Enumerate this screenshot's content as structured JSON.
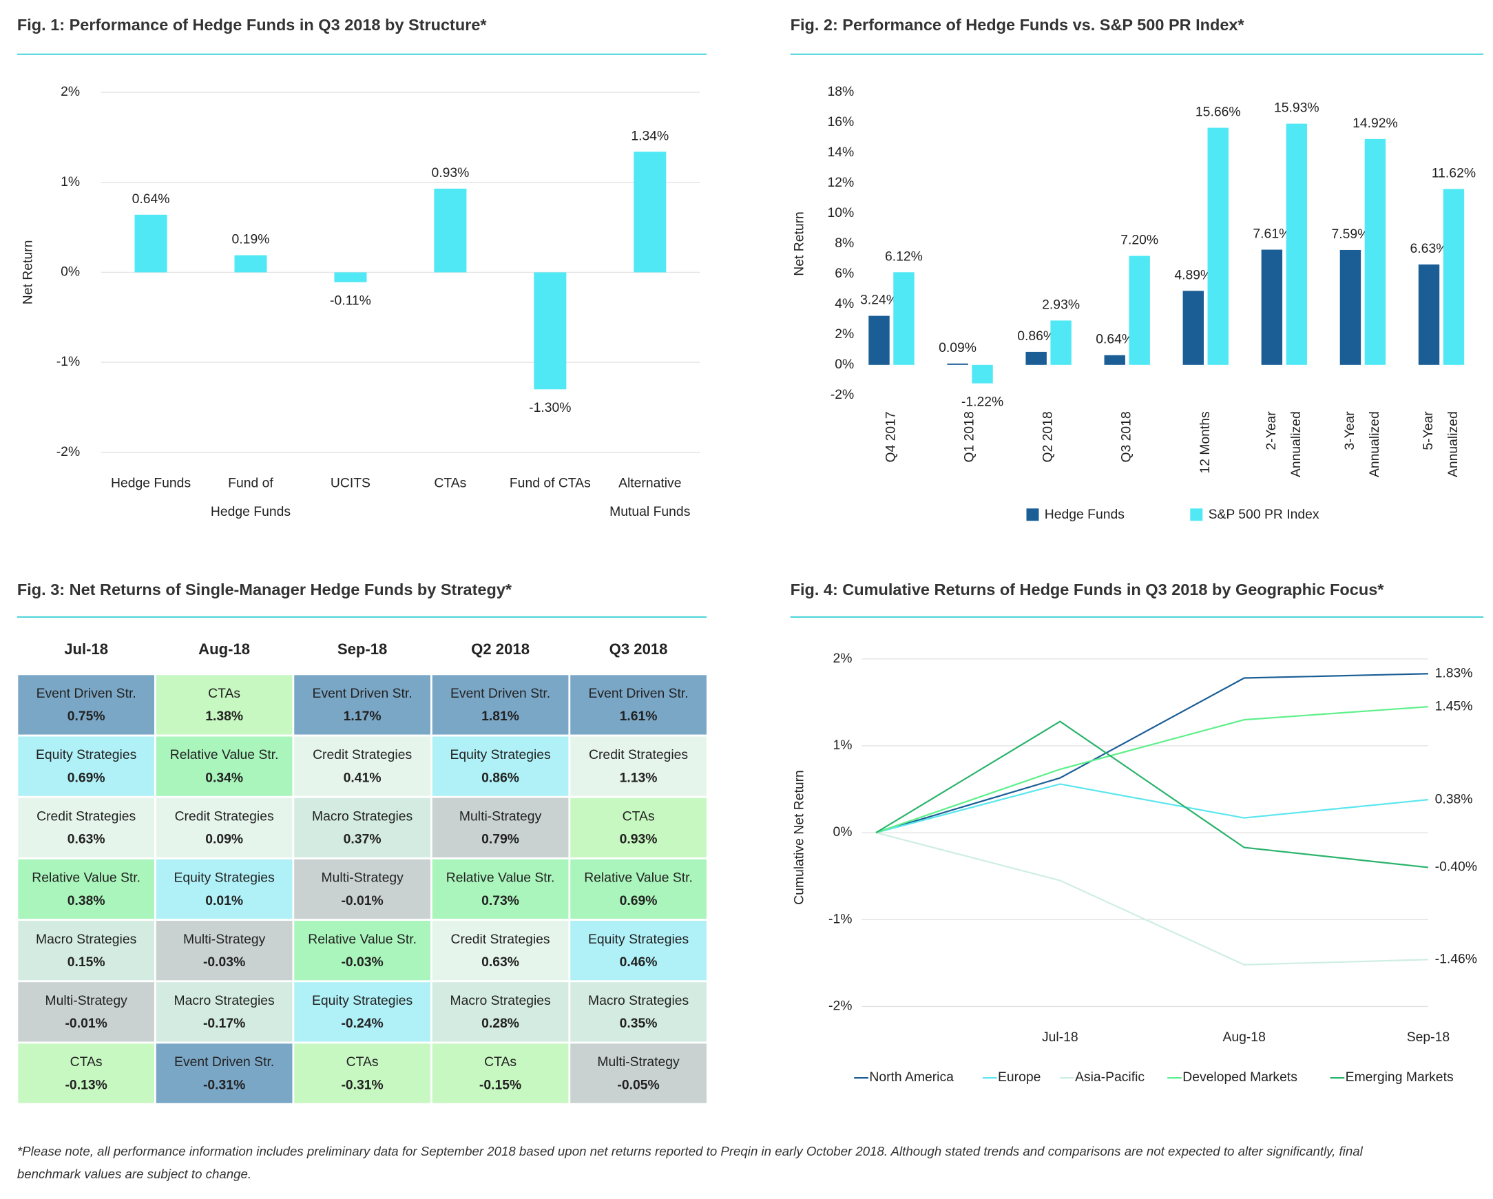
{
  "chart_data": [
    {
      "type": "bar",
      "title": "Fig. 1: Performance of Hedge Funds in Q3 2018 by Structure*",
      "ylabel": "Net Return",
      "categories": [
        "Hedge Funds",
        "Fund of Hedge Funds",
        "UCITS",
        "CTAs",
        "Fund of CTAs",
        "Alternative Mutual Funds"
      ],
      "values": [
        0.64,
        0.19,
        -0.11,
        0.93,
        -1.3,
        1.34
      ],
      "value_labels": [
        "0.64%",
        "0.19%",
        "-0.11%",
        "0.93%",
        "-1.30%",
        "1.34%"
      ],
      "color": "#50e8f5",
      "ylim": [
        -2,
        2
      ],
      "yticks": [
        {
          "value": -2,
          "label": "-2%"
        },
        {
          "value": -1,
          "label": "-1%"
        },
        {
          "value": 0,
          "label": "0%"
        },
        {
          "value": 1,
          "label": "1%"
        },
        {
          "value": 2,
          "label": "2%"
        }
      ],
      "grid": true
    },
    {
      "type": "grouped-bar",
      "title": "Fig. 2: Performance of Hedge Funds vs. S&P 500 PR Index*",
      "ylabel": "Net Return",
      "categories": [
        "Q4 2017",
        "Q1 2018",
        "Q2 2018",
        "Q3 2018",
        "12 Months",
        "2-Year Annualized",
        "3-Year Annualized",
        "5-Year Annualized"
      ],
      "series": [
        {
          "name": "Hedge Funds",
          "color": "#1b5e96",
          "values": [
            3.24,
            0.09,
            0.86,
            0.64,
            4.89,
            7.61,
            7.59,
            6.63
          ],
          "value_labels": [
            "3.24%",
            "0.09%",
            "0.86%",
            "0.64%",
            "4.89%",
            "7.61%",
            "7.59%",
            "6.63%"
          ]
        },
        {
          "name": "S&P 500 PR Index",
          "color": "#50e8f5",
          "values": [
            6.12,
            -1.22,
            2.93,
            7.2,
            15.66,
            15.93,
            14.92,
            11.62
          ],
          "value_labels": [
            "6.12%",
            "-1.22%",
            "2.93%",
            "7.20%",
            "15.66%",
            "15.93%",
            "14.92%",
            "11.62%"
          ]
        }
      ],
      "ylim": [
        -2,
        18
      ],
      "yticks": [
        {
          "value": -2,
          "label": "-2%"
        },
        {
          "value": 0,
          "label": "0%"
        },
        {
          "value": 2,
          "label": "2%"
        },
        {
          "value": 4,
          "label": "4%"
        },
        {
          "value": 6,
          "label": "6%"
        },
        {
          "value": 8,
          "label": "8%"
        },
        {
          "value": 10,
          "label": "10%"
        },
        {
          "value": 12,
          "label": "12%"
        },
        {
          "value": 14,
          "label": "14%"
        },
        {
          "value": 16,
          "label": "16%"
        },
        {
          "value": 18,
          "label": "18%"
        }
      ],
      "grid": false,
      "legend": "bottom"
    },
    {
      "type": "line",
      "title": "Fig. 4: Cumulative Returns of Hedge Funds in Q3 2018 by Geographic Focus*",
      "ylabel": "Cumulative Net Return",
      "categories": [
        null,
        "Jul-18",
        "Aug-18",
        "Sep-18"
      ],
      "series": [
        {
          "name": "North America",
          "color": "#1b5e96",
          "values": [
            0,
            0.63,
            1.78,
            1.83
          ],
          "value_labels": [
            null,
            null,
            null,
            "1.83%"
          ]
        },
        {
          "name": "Europe",
          "color": "#5ce6ef",
          "values": [
            0,
            0.56,
            0.17,
            0.38
          ],
          "value_labels": [
            null,
            null,
            null,
            "0.38%"
          ]
        },
        {
          "name": "Asia-Pacific",
          "color": "#cfeee2",
          "values": [
            0,
            -0.55,
            -1.52,
            -1.46
          ],
          "value_labels": [
            null,
            null,
            null,
            "-1.46%"
          ]
        },
        {
          "name": "Developed Markets",
          "color": "#5ef08a",
          "values": [
            0,
            0.73,
            1.3,
            1.45
          ],
          "value_labels": [
            null,
            null,
            null,
            "1.45%"
          ]
        },
        {
          "name": "Emerging Markets",
          "color": "#2ab36c",
          "values": [
            0,
            1.28,
            -0.17,
            -0.4
          ],
          "value_labels": [
            null,
            null,
            null,
            "-0.40%"
          ]
        }
      ],
      "ylim": [
        -2,
        2
      ],
      "yticks": [
        {
          "value": -2,
          "label": "-2%"
        },
        {
          "value": -1,
          "label": "-1%"
        },
        {
          "value": 0,
          "label": "0%"
        },
        {
          "value": 1,
          "label": "1%"
        },
        {
          "value": 2,
          "label": "2%"
        }
      ],
      "grid": true,
      "legend": "bottom"
    }
  ],
  "table": {
    "title": "Fig. 3: Net Returns of Single-Manager Hedge Funds by Strategy*",
    "columns": [
      "Jul-18",
      "Aug-18",
      "Sep-18",
      "Q2 2018",
      "Q3 2018"
    ],
    "rows": [
      [
        {
          "name": "Event Driven Str.",
          "value": "0.75%",
          "color": "#7ba7c7"
        },
        {
          "name": "CTAs",
          "value": "1.38%",
          "color": "#c8f8c2"
        },
        {
          "name": "Event Driven Str.",
          "value": "1.17%",
          "color": "#7ba7c7"
        },
        {
          "name": "Event Driven Str.",
          "value": "1.81%",
          "color": "#7ba7c7"
        },
        {
          "name": "Event Driven Str.",
          "value": "1.61%",
          "color": "#7ba7c7"
        }
      ],
      [
        {
          "name": "Equity Strategies",
          "value": "0.69%",
          "color": "#b0f1f8"
        },
        {
          "name": "Relative Value Str.",
          "value": "0.34%",
          "color": "#a9f5bb"
        },
        {
          "name": "Credit Strategies",
          "value": "0.41%",
          "color": "#e6f5ec"
        },
        {
          "name": "Equity Strategies",
          "value": "0.86%",
          "color": "#b0f1f8"
        },
        {
          "name": "Credit Strategies",
          "value": "1.13%",
          "color": "#e6f5ec"
        }
      ],
      [
        {
          "name": "Credit Strategies",
          "value": "0.63%",
          "color": "#e6f5ec"
        },
        {
          "name": "Credit Strategies",
          "value": "0.09%",
          "color": "#e6f5ec"
        },
        {
          "name": "Macro Strategies",
          "value": "0.37%",
          "color": "#d3ebe0"
        },
        {
          "name": "Multi-Strategy",
          "value": "0.79%",
          "color": "#c9d1d1"
        },
        {
          "name": "CTAs",
          "value": "0.93%",
          "color": "#c8f8c2"
        }
      ],
      [
        {
          "name": "Relative Value Str.",
          "value": "0.38%",
          "color": "#a9f5bb"
        },
        {
          "name": "Equity Strategies",
          "value": "0.01%",
          "color": "#b0f1f8"
        },
        {
          "name": "Multi-Strategy",
          "value": "-0.01%",
          "color": "#c9d1d1"
        },
        {
          "name": "Relative Value Str.",
          "value": "0.73%",
          "color": "#a9f5bb"
        },
        {
          "name": "Relative Value Str.",
          "value": "0.69%",
          "color": "#a9f5bb"
        }
      ],
      [
        {
          "name": "Macro Strategies",
          "value": "0.15%",
          "color": "#d3ebe0"
        },
        {
          "name": "Multi-Strategy",
          "value": "-0.03%",
          "color": "#c9d1d1"
        },
        {
          "name": "Relative Value Str.",
          "value": "-0.03%",
          "color": "#a9f5bb"
        },
        {
          "name": "Credit Strategies",
          "value": "0.63%",
          "color": "#e6f5ec"
        },
        {
          "name": "Equity Strategies",
          "value": "0.46%",
          "color": "#b0f1f8"
        }
      ],
      [
        {
          "name": "Multi-Strategy",
          "value": "-0.01%",
          "color": "#c9d1d1"
        },
        {
          "name": "Macro Strategies",
          "value": "-0.17%",
          "color": "#d3ebe0"
        },
        {
          "name": "Equity Strategies",
          "value": "-0.24%",
          "color": "#b0f1f8"
        },
        {
          "name": "Macro Strategies",
          "value": "0.28%",
          "color": "#d3ebe0"
        },
        {
          "name": "Macro Strategies",
          "value": "0.35%",
          "color": "#d3ebe0"
        }
      ],
      [
        {
          "name": "CTAs",
          "value": "-0.13%",
          "color": "#c8f8c2"
        },
        {
          "name": "Event Driven Str.",
          "value": "-0.31%",
          "color": "#7ba7c7"
        },
        {
          "name": "CTAs",
          "value": "-0.31%",
          "color": "#c8f8c2"
        },
        {
          "name": "CTAs",
          "value": "-0.15%",
          "color": "#c8f8c2"
        },
        {
          "name": "Multi-Strategy",
          "value": "-0.05%",
          "color": "#c9d1d1"
        }
      ]
    ]
  },
  "footnote": [
    "*Please note, all performance information includes preliminary data for September 2018 based upon net returns reported to Preqin in early October 2018. Although stated trends and comparisons are not expected to alter significantly, final",
    "benchmark values are subject to change."
  ]
}
